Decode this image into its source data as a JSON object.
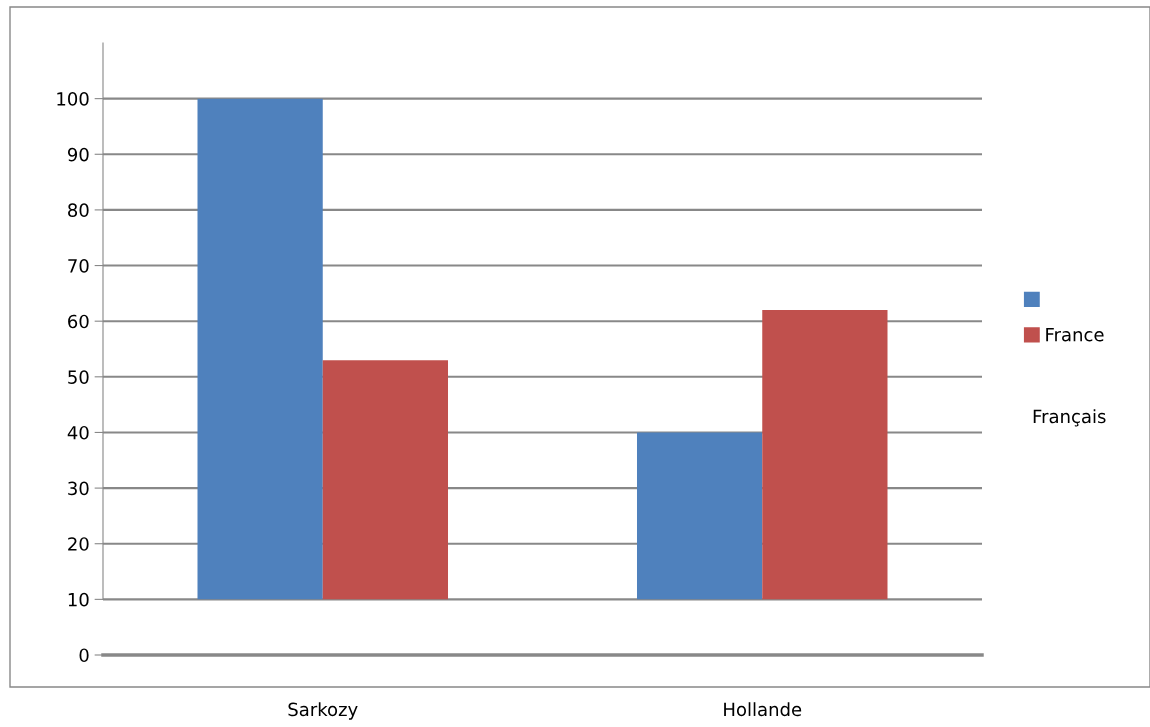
{
  "chart_data": {
    "type": "bar",
    "categories": [
      "Sarkozy",
      "Hollande"
    ],
    "series": [
      {
        "color": "#4f81bd",
        "values": [
          90,
          30
        ],
        "base": [
          10,
          10
        ]
      },
      {
        "name": "France",
        "color": "#c0504d",
        "values": [
          43,
          52
        ],
        "base": [
          10,
          10
        ]
      }
    ],
    "ylim": [
      0,
      110
    ],
    "yticks": [
      0,
      10,
      20,
      30,
      40,
      50,
      60,
      70,
      80,
      90,
      100
    ],
    "grid": "y",
    "legend": "right",
    "annotations": [
      "Français"
    ]
  }
}
